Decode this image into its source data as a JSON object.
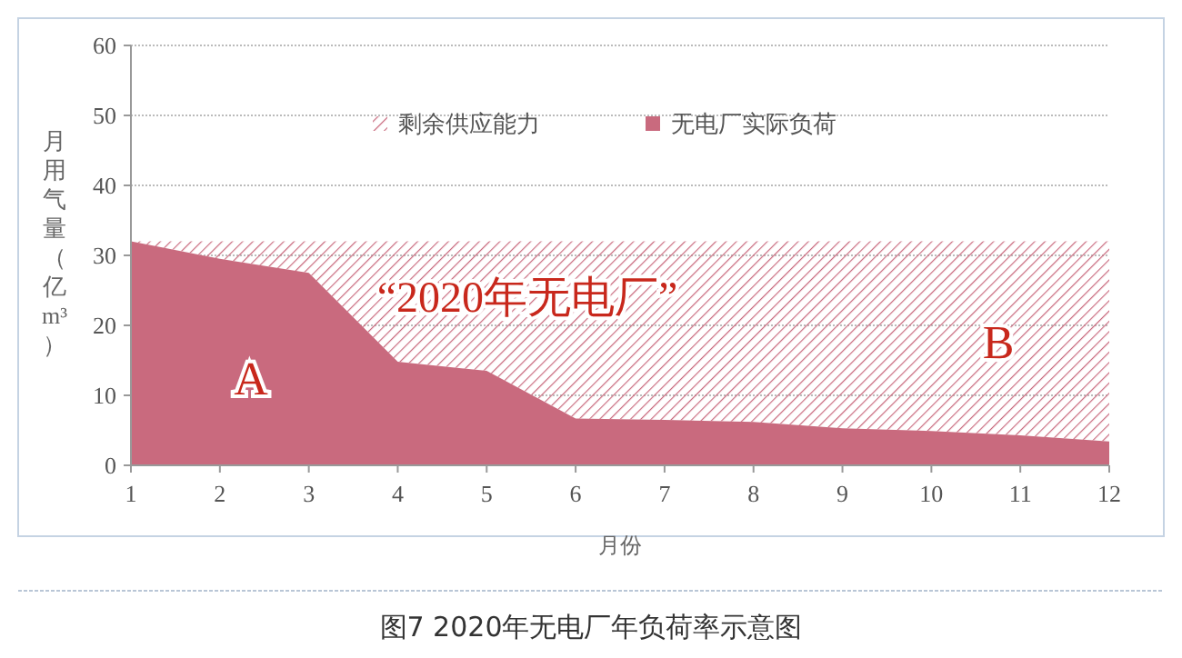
{
  "chart_data": {
    "type": "area",
    "stacked": true,
    "title": "图7 2020年无电厂年负荷率示意图",
    "xlabel": "月份",
    "ylabel": "月用气量（亿m³）",
    "x": [
      1,
      2,
      3,
      4,
      5,
      6,
      7,
      8,
      9,
      10,
      11,
      12
    ],
    "series": [
      {
        "name": "无电厂实际负荷",
        "color": "#c96a7e",
        "values": [
          32,
          29.5,
          27.5,
          14.8,
          13.5,
          6.7,
          6.5,
          6.2,
          5.3,
          4.9,
          4.3,
          3.4
        ]
      },
      {
        "name": "剩余供应能力",
        "color": "#c96a7e",
        "values": [
          0,
          2.5,
          4.5,
          17.2,
          18.5,
          25.3,
          25.5,
          25.8,
          26.7,
          27.1,
          27.7,
          28.6
        ]
      }
    ],
    "xlim": [
      1,
      12
    ],
    "xticks": [
      1,
      2,
      3,
      4,
      5,
      6,
      7,
      8,
      9,
      10,
      11,
      12
    ],
    "ylim": [
      0,
      60
    ],
    "yticks": [
      0,
      10,
      20,
      30,
      40,
      50,
      60
    ],
    "grid": "y",
    "legend": "top",
    "annotations": [
      "“2020年无电厂”",
      "A",
      "B"
    ]
  }
}
